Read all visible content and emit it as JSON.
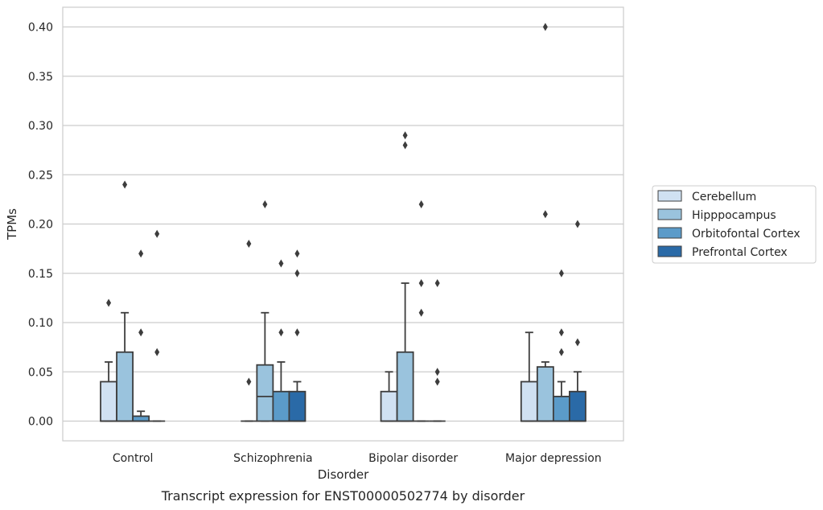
{
  "chart_data": {
    "type": "box",
    "caption": "Transcript expression for ENST00000502774 by disorder",
    "xlabel": "Disorder",
    "ylabel": "TPMs",
    "ylim": [
      -0.02,
      0.42
    ],
    "yticks": [
      0.0,
      0.05,
      0.1,
      0.15,
      0.2,
      0.25,
      0.3,
      0.35,
      0.4
    ],
    "ytick_labels": [
      "0.00",
      "0.05",
      "0.10",
      "0.15",
      "0.20",
      "0.25",
      "0.30",
      "0.35",
      "0.40"
    ],
    "grid": true,
    "legend_position": "right",
    "categories": [
      "Control",
      "Schizophrenia",
      "Bipolar disorder",
      "Major depression"
    ],
    "series": [
      {
        "name": "Cerebellum",
        "color": "#d0e1f2",
        "boxes": [
          {
            "q1": 0.0,
            "median": 0.0,
            "q3": 0.04,
            "whisker_low": 0.0,
            "whisker_high": 0.06,
            "outliers": [
              0.12
            ]
          },
          {
            "q1": 0.0,
            "median": 0.0,
            "q3": 0.0,
            "whisker_low": 0.0,
            "whisker_high": 0.0,
            "outliers": [
              0.04,
              0.18
            ]
          },
          {
            "q1": 0.0,
            "median": 0.0,
            "q3": 0.03,
            "whisker_low": 0.0,
            "whisker_high": 0.05,
            "outliers": []
          },
          {
            "q1": 0.0,
            "median": 0.0,
            "q3": 0.04,
            "whisker_low": 0.0,
            "whisker_high": 0.09,
            "outliers": []
          }
        ]
      },
      {
        "name": "Hipppocampus",
        "color": "#9ac3dd",
        "boxes": [
          {
            "q1": 0.0,
            "median": 0.0,
            "q3": 0.07,
            "whisker_low": 0.0,
            "whisker_high": 0.11,
            "outliers": [
              0.24
            ]
          },
          {
            "q1": 0.0,
            "median": 0.025,
            "q3": 0.057,
            "whisker_low": 0.0,
            "whisker_high": 0.11,
            "outliers": [
              0.22
            ]
          },
          {
            "q1": 0.0,
            "median": 0.0,
            "q3": 0.07,
            "whisker_low": 0.0,
            "whisker_high": 0.14,
            "outliers": [
              0.28,
              0.29
            ]
          },
          {
            "q1": 0.0,
            "median": 0.0,
            "q3": 0.055,
            "whisker_low": 0.0,
            "whisker_high": 0.06,
            "outliers": [
              0.21,
              0.4
            ]
          }
        ]
      },
      {
        "name": "Orbitofontal Cortex",
        "color": "#5b9bc9",
        "boxes": [
          {
            "q1": 0.0,
            "median": 0.0,
            "q3": 0.005,
            "whisker_low": 0.0,
            "whisker_high": 0.01,
            "outliers": [
              0.09,
              0.17
            ]
          },
          {
            "q1": 0.0,
            "median": 0.0,
            "q3": 0.03,
            "whisker_low": 0.0,
            "whisker_high": 0.06,
            "outliers": [
              0.09,
              0.16
            ]
          },
          {
            "q1": 0.0,
            "median": 0.0,
            "q3": 0.0,
            "whisker_low": 0.0,
            "whisker_high": 0.0,
            "outliers": [
              0.11,
              0.14,
              0.22
            ]
          },
          {
            "q1": 0.0,
            "median": 0.0,
            "q3": 0.025,
            "whisker_low": 0.0,
            "whisker_high": 0.04,
            "outliers": [
              0.07,
              0.09,
              0.15
            ]
          }
        ]
      },
      {
        "name": "Prefrontal Cortex",
        "color": "#2a6aa7",
        "boxes": [
          {
            "q1": 0.0,
            "median": 0.0,
            "q3": 0.0,
            "whisker_low": 0.0,
            "whisker_high": 0.0,
            "outliers": [
              0.07,
              0.19
            ]
          },
          {
            "q1": 0.0,
            "median": 0.0,
            "q3": 0.03,
            "whisker_low": 0.0,
            "whisker_high": 0.04,
            "outliers": [
              0.09,
              0.15,
              0.17
            ]
          },
          {
            "q1": 0.0,
            "median": 0.0,
            "q3": 0.0,
            "whisker_low": 0.0,
            "whisker_high": 0.0,
            "outliers": [
              0.04,
              0.05,
              0.14
            ]
          },
          {
            "q1": 0.0,
            "median": 0.0,
            "q3": 0.03,
            "whisker_low": 0.0,
            "whisker_high": 0.05,
            "outliers": [
              0.08,
              0.2
            ]
          }
        ]
      }
    ]
  }
}
